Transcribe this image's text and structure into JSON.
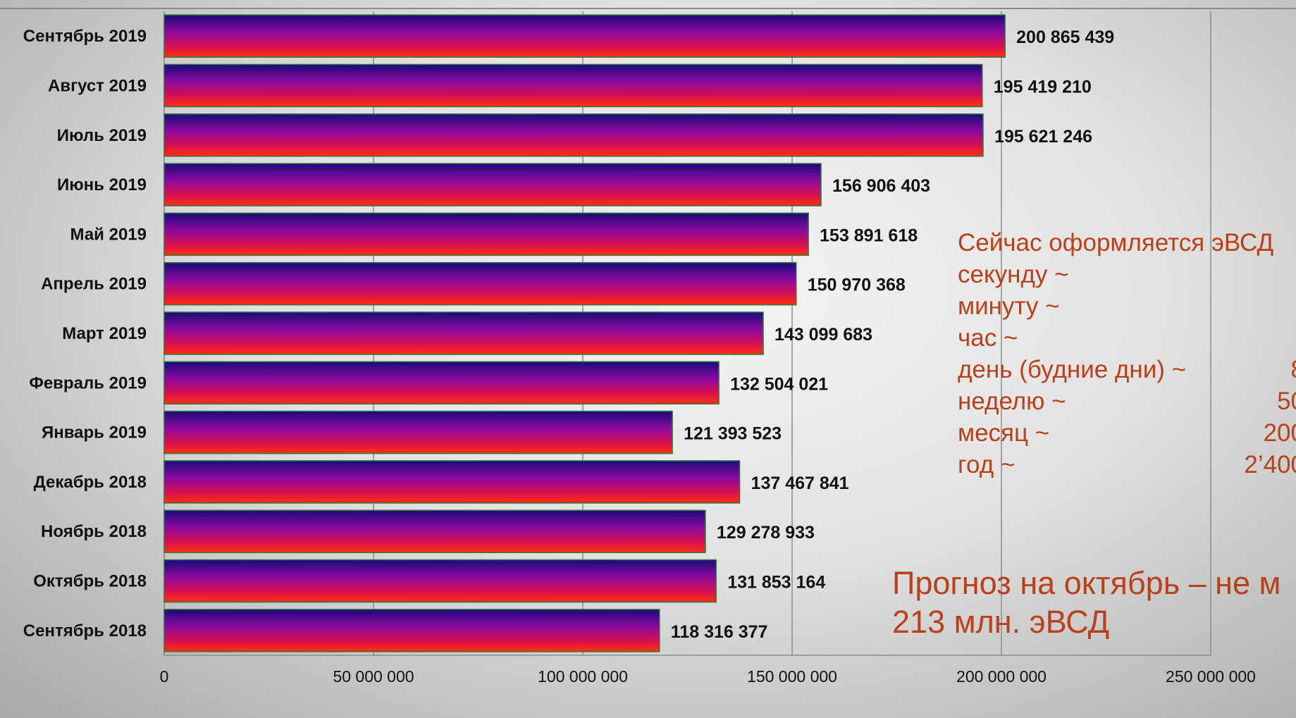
{
  "chart_data": {
    "type": "bar",
    "orientation": "horizontal",
    "categories": [
      "Сентябрь 2019",
      "Август 2019",
      "Июль 2019",
      "Июнь 2019",
      "Май 2019",
      "Апрель 2019",
      "Март 2019",
      "Февраль 2019",
      "Январь 2019",
      "Декабрь 2018",
      "Ноябрь 2018",
      "Октябрь 2018",
      "Сентябрь 2018"
    ],
    "values": [
      200865439,
      195419210,
      195621246,
      156906403,
      153891618,
      150970368,
      143099683,
      132504021,
      121393523,
      137467841,
      129278933,
      131853164,
      118316377
    ],
    "value_labels": [
      "200 865 439",
      "195 419 210",
      "195 621 246",
      "156 906 403",
      "153 891 618",
      "150 970 368",
      "143 099 683",
      "132 504 021",
      "121 393 523",
      "137 467 841",
      "129 278 933",
      "131 853 164",
      "118 316 377"
    ],
    "x_ticks": [
      0,
      50000000,
      100000000,
      150000000,
      200000000,
      250000000
    ],
    "x_tick_labels": [
      "0",
      "50 000 000",
      "100 000 000",
      "150 000 000",
      "200 000 000",
      "250 000 000"
    ],
    "xlim": [
      0,
      250000000
    ],
    "grid": true,
    "legend": "none",
    "bar_gradient": [
      "#1a0a7a",
      "#8a0aa0",
      "#d81050",
      "#ff3010"
    ]
  },
  "stats": {
    "title": "Сейчас оформляется эВСД",
    "rows": [
      {
        "label": "секунду ~",
        "value": ""
      },
      {
        "label": "минуту ~",
        "value": ""
      },
      {
        "label": "час ~",
        "value": ""
      },
      {
        "label": "день (будние дни) ~",
        "value": "8"
      },
      {
        "label": "неделю ~",
        "value": "50"
      },
      {
        "label": "месяц ~",
        "value": "200"
      },
      {
        "label": "год ~",
        "value": "2’400"
      }
    ]
  },
  "forecast": {
    "line1": "Прогноз на октябрь – не м",
    "line2": "213 млн. эВСД"
  },
  "colors": {
    "annotation": "#b8401a"
  }
}
